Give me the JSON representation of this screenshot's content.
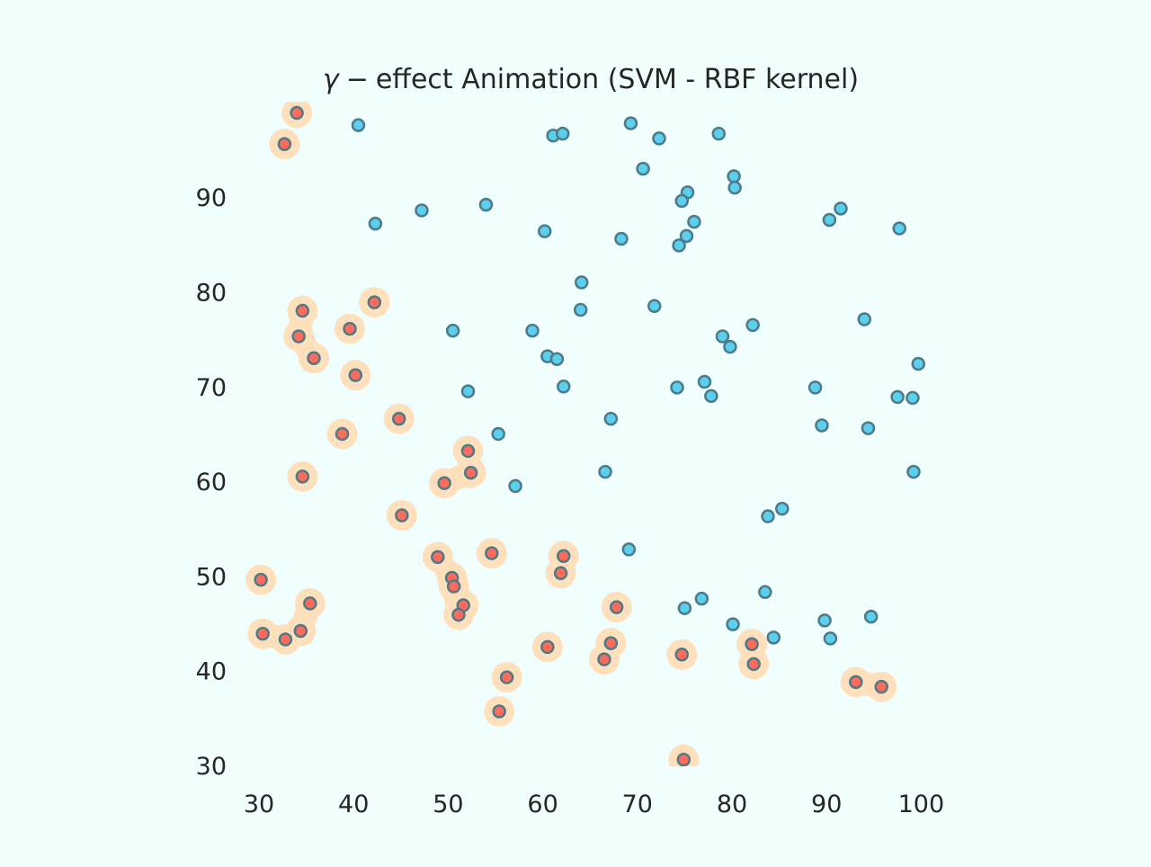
{
  "chart_data": {
    "type": "scatter",
    "title_gamma": "γ",
    "title_minus": "−",
    "title_rest": "effect Animation (SVM - RBF kernel)",
    "xlim": [
      28,
      102
    ],
    "ylim": [
      28,
      100.5
    ],
    "x_ticks": [
      30,
      40,
      50,
      60,
      70,
      80,
      90,
      100
    ],
    "y_ticks": [
      30,
      40,
      50,
      60,
      70,
      80,
      90
    ],
    "grid": false,
    "colors": {
      "background": "#f0fffe",
      "class_0_fill": "#5bcfee",
      "class_1_fill": "#ff6b5a",
      "marker_edge": "#4f7a87",
      "region_fill": "#ffe0bd"
    },
    "series": [
      {
        "class": 0,
        "points": [
          [
            40.5,
            97.6
          ],
          [
            61.1,
            96.5
          ],
          [
            62.1,
            96.7
          ],
          [
            69.3,
            97.8
          ],
          [
            72.3,
            96.2
          ],
          [
            78.6,
            96.7
          ],
          [
            70.6,
            93.0
          ],
          [
            80.2,
            92.2
          ],
          [
            80.3,
            91.0
          ],
          [
            75.3,
            90.5
          ],
          [
            74.7,
            89.6
          ],
          [
            91.5,
            88.8
          ],
          [
            54.0,
            89.2
          ],
          [
            47.2,
            88.6
          ],
          [
            42.3,
            87.2
          ],
          [
            90.3,
            87.6
          ],
          [
            76.0,
            87.4
          ],
          [
            97.7,
            86.7
          ],
          [
            60.2,
            86.4
          ],
          [
            68.3,
            85.6
          ],
          [
            75.2,
            85.9
          ],
          [
            74.4,
            84.9
          ],
          [
            64.1,
            81.0
          ],
          [
            64.0,
            78.1
          ],
          [
            71.8,
            78.5
          ],
          [
            82.2,
            76.5
          ],
          [
            94.0,
            77.1
          ],
          [
            50.5,
            75.9
          ],
          [
            58.9,
            75.9
          ],
          [
            79.0,
            75.3
          ],
          [
            79.8,
            74.2
          ],
          [
            60.5,
            73.2
          ],
          [
            61.5,
            72.9
          ],
          [
            99.7,
            72.4
          ],
          [
            77.1,
            70.5
          ],
          [
            62.2,
            70.0
          ],
          [
            74.2,
            69.9
          ],
          [
            88.8,
            69.9
          ],
          [
            52.1,
            69.5
          ],
          [
            77.8,
            69.0
          ],
          [
            97.5,
            68.9
          ],
          [
            99.1,
            68.8
          ],
          [
            67.2,
            66.6
          ],
          [
            89.5,
            65.9
          ],
          [
            94.4,
            65.6
          ],
          [
            55.3,
            65.0
          ],
          [
            66.6,
            61.0
          ],
          [
            99.2,
            61.0
          ],
          [
            57.1,
            59.5
          ],
          [
            85.3,
            57.1
          ],
          [
            83.8,
            56.3
          ],
          [
            69.1,
            52.8
          ],
          [
            83.5,
            48.3
          ],
          [
            76.8,
            47.6
          ],
          [
            75.0,
            46.6
          ],
          [
            94.7,
            45.7
          ],
          [
            89.8,
            45.3
          ],
          [
            80.1,
            44.9
          ],
          [
            84.4,
            43.5
          ],
          [
            90.4,
            43.4
          ]
        ]
      },
      {
        "class": 1,
        "points": [
          [
            34.0,
            98.9
          ],
          [
            32.7,
            95.6
          ],
          [
            34.6,
            78.0
          ],
          [
            42.2,
            78.9
          ],
          [
            39.6,
            76.1
          ],
          [
            34.2,
            75.3
          ],
          [
            35.8,
            73.0
          ],
          [
            40.2,
            71.2
          ],
          [
            44.8,
            66.6
          ],
          [
            38.8,
            65.0
          ],
          [
            52.1,
            63.2
          ],
          [
            34.6,
            60.5
          ],
          [
            52.4,
            60.9
          ],
          [
            49.6,
            59.8
          ],
          [
            45.1,
            56.4
          ],
          [
            54.6,
            52.4
          ],
          [
            62.2,
            52.1
          ],
          [
            48.9,
            52.0
          ],
          [
            61.9,
            50.3
          ],
          [
            50.4,
            49.8
          ],
          [
            30.2,
            49.6
          ],
          [
            50.6,
            48.9
          ],
          [
            35.4,
            47.1
          ],
          [
            51.6,
            46.9
          ],
          [
            67.8,
            46.7
          ],
          [
            51.1,
            45.9
          ],
          [
            34.4,
            44.2
          ],
          [
            30.4,
            43.9
          ],
          [
            32.8,
            43.3
          ],
          [
            67.2,
            42.9
          ],
          [
            82.1,
            42.8
          ],
          [
            60.5,
            42.5
          ],
          [
            74.7,
            41.7
          ],
          [
            66.5,
            41.2
          ],
          [
            82.3,
            40.7
          ],
          [
            56.2,
            39.3
          ],
          [
            93.1,
            38.8
          ],
          [
            95.8,
            38.3
          ],
          [
            55.4,
            35.7
          ],
          [
            74.9,
            30.6
          ]
        ]
      }
    ]
  }
}
